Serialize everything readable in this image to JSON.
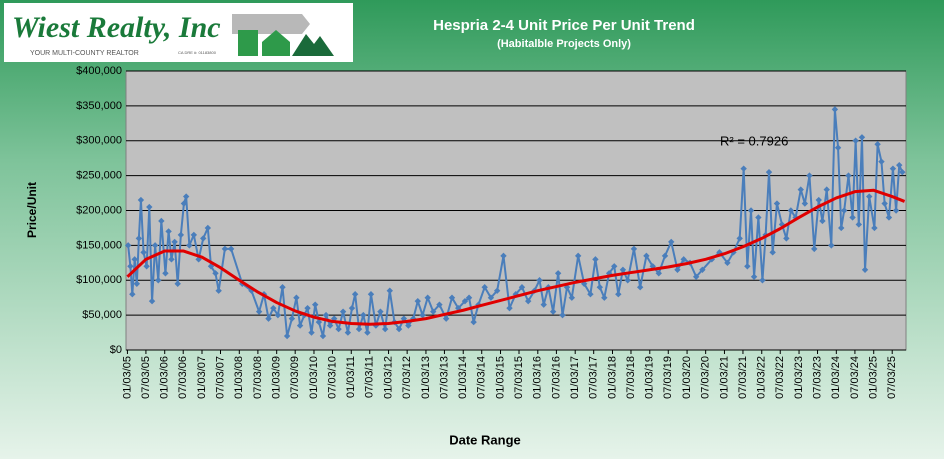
{
  "logo": {
    "name": "Wiest Realty, Inc",
    "tagline": "YOUR MULTI-COUNTY REALTOR",
    "license": "CA DRE #: 01183800"
  },
  "chart_data": {
    "type": "line",
    "title": "Hespria 2-4 Unit Price Per Unit Trend",
    "subtitle": "(Habitalble  Projects Only)",
    "x_label": "Date Range",
    "y_label": "Price/Unit",
    "annotation": "R² = 0.7926",
    "grid": true,
    "xlim": [
      "12/20/04",
      "11/15/25"
    ],
    "xticks": [
      "01/03/05",
      "07/03/05",
      "01/03/06",
      "07/03/06",
      "01/03/07",
      "07/03/07",
      "01/03/08",
      "07/03/08",
      "01/03/09",
      "07/03/09",
      "01/03/10",
      "07/03/10",
      "01/03/11",
      "07/03/11",
      "01/03/12",
      "07/03/12",
      "01/03/13",
      "07/03/13",
      "01/03/14",
      "07/03/14",
      "01/03/15",
      "07/03/15",
      "01/03/16",
      "07/03/16",
      "01/03/17",
      "07/03/17",
      "01/03/18",
      "07/03/18",
      "01/03/19",
      "07/03/19",
      "01/03/20",
      "07/03/20",
      "01/03/21",
      "07/03/21",
      "01/03/22",
      "07/03/22",
      "01/03/23",
      "07/03/23",
      "01/03/24",
      "07/03/24",
      "01/03/25",
      "07/03/25"
    ],
    "ylim": [
      0,
      400000
    ],
    "yticks": [
      {
        "value": 0,
        "label": "$0"
      },
      {
        "value": 50000,
        "label": "$50,000"
      },
      {
        "value": 100000,
        "label": "$100,000"
      },
      {
        "value": 150000,
        "label": "$150,000"
      },
      {
        "value": 200000,
        "label": "$200,000"
      },
      {
        "value": 250000,
        "label": "$250,000"
      },
      {
        "value": 300000,
        "label": "$300,000"
      },
      {
        "value": 350000,
        "label": "$350,000"
      },
      {
        "value": 400000,
        "label": "$400,000"
      }
    ],
    "series": [
      {
        "color": "#4a7ebb",
        "marker": "diamond",
        "x": [
          "01/10/05",
          "02/01/05",
          "02/20/05",
          "03/15/05",
          "04/05/05",
          "04/25/05",
          "05/15/05",
          "06/10/05",
          "07/10/05",
          "08/05/05",
          "09/01/05",
          "10/01/05",
          "11/01/05",
          "12/01/05",
          "01/10/06",
          "02/10/06",
          "03/10/06",
          "04/10/06",
          "05/10/06",
          "06/10/06",
          "07/10/06",
          "08/01/06",
          "09/01/06",
          "10/15/06",
          "12/01/06",
          "01/15/07",
          "03/01/07",
          "04/01/07",
          "05/15/07",
          "06/15/07",
          "08/15/07",
          "10/15/07",
          "02/01/08",
          "05/01/08",
          "07/15/08",
          "09/01/08",
          "10/15/08",
          "12/01/08",
          "01/15/09",
          "03/01/09",
          "04/15/09",
          "06/01/09",
          "07/15/09",
          "08/20/09",
          "10/01/09",
          "11/01/09",
          "12/10/09",
          "01/15/10",
          "02/20/10",
          "04/01/10",
          "05/01/10",
          "06/10/10",
          "07/20/10",
          "09/01/10",
          "10/15/10",
          "12/01/10",
          "01/10/11",
          "02/10/11",
          "03/20/11",
          "05/01/11",
          "06/10/11",
          "07/15/11",
          "09/01/11",
          "10/15/11",
          "12/01/11",
          "01/15/12",
          "03/01/12",
          "04/15/12",
          "06/01/12",
          "07/15/12",
          "09/01/12",
          "10/15/12",
          "12/01/12",
          "01/20/13",
          "03/15/13",
          "05/15/13",
          "07/20/13",
          "09/15/13",
          "11/15/13",
          "01/20/14",
          "03/01/14",
          "04/15/14",
          "06/01/14",
          "08/01/14",
          "10/01/14",
          "12/01/14",
          "02/01/15",
          "04/01/15",
          "06/01/15",
          "08/01/15",
          "10/01/15",
          "12/01/15",
          "01/20/16",
          "03/01/16",
          "04/15/16",
          "06/01/16",
          "07/20/16",
          "09/01/16",
          "10/15/16",
          "12/01/16",
          "02/01/17",
          "04/01/17",
          "06/01/17",
          "07/20/17",
          "09/01/17",
          "10/15/17",
          "12/01/17",
          "01/20/18",
          "03/01/18",
          "04/15/18",
          "06/01/18",
          "08/01/18",
          "10/01/18",
          "12/01/18",
          "02/01/19",
          "04/01/19",
          "06/01/19",
          "08/01/19",
          "10/01/19",
          "12/01/19",
          "02/01/20",
          "04/01/20",
          "06/01/20",
          "09/01/20",
          "11/15/20",
          "02/01/21",
          "04/01/21",
          "06/01/21",
          "07/10/21",
          "08/15/21",
          "09/20/21",
          "10/20/21",
          "12/01/21",
          "01/10/22",
          "02/10/22",
          "03/15/22",
          "04/20/22",
          "06/01/22",
          "07/20/22",
          "09/01/22",
          "10/15/22",
          "12/01/22",
          "01/20/23",
          "03/01/23",
          "04/15/23",
          "06/01/23",
          "07/15/23",
          "08/20/23",
          "10/01/23",
          "11/15/23",
          "12/20/23",
          "01/20/24",
          "02/20/24",
          "03/20/24",
          "05/01/24",
          "06/10/24",
          "07/10/24",
          "08/10/24",
          "09/10/24",
          "10/10/24",
          "11/20/24",
          "01/10/25",
          "02/10/25",
          "03/20/25",
          "04/20/25",
          "06/01/25",
          "07/10/25",
          "08/10/25",
          "09/10/25",
          "10/10/25"
        ],
        "values": [
          150000,
          120000,
          80000,
          130000,
          95000,
          160000,
          215000,
          140000,
          120000,
          205000,
          70000,
          150000,
          100000,
          185000,
          110000,
          170000,
          130000,
          155000,
          95000,
          165000,
          210000,
          220000,
          150000,
          165000,
          130000,
          160000,
          175000,
          120000,
          110000,
          85000,
          145000,
          145000,
          95000,
          85000,
          55000,
          80000,
          45000,
          60000,
          50000,
          90000,
          20000,
          45000,
          75000,
          35000,
          50000,
          60000,
          25000,
          65000,
          40000,
          20000,
          50000,
          35000,
          45000,
          30000,
          55000,
          25000,
          60000,
          80000,
          30000,
          50000,
          25000,
          80000,
          35000,
          55000,
          30000,
          85000,
          40000,
          30000,
          45000,
          35000,
          45000,
          70000,
          50000,
          75000,
          55000,
          65000,
          45000,
          75000,
          60000,
          70000,
          75000,
          40000,
          65000,
          90000,
          75000,
          85000,
          135000,
          60000,
          80000,
          90000,
          70000,
          85000,
          100000,
          65000,
          90000,
          55000,
          110000,
          50000,
          90000,
          75000,
          135000,
          95000,
          80000,
          130000,
          90000,
          75000,
          110000,
          120000,
          80000,
          115000,
          100000,
          145000,
          90000,
          135000,
          120000,
          110000,
          135000,
          155000,
          115000,
          130000,
          125000,
          105000,
          115000,
          130000,
          140000,
          125000,
          140000,
          160000,
          260000,
          120000,
          200000,
          105000,
          190000,
          100000,
          165000,
          255000,
          140000,
          210000,
          180000,
          160000,
          200000,
          190000,
          230000,
          210000,
          250000,
          145000,
          215000,
          185000,
          230000,
          150000,
          345000,
          290000,
          175000,
          200000,
          250000,
          190000,
          300000,
          180000,
          305000,
          115000,
          220000,
          175000,
          295000,
          270000,
          210000,
          190000,
          260000,
          200000,
          265000,
          255000
        ]
      },
      {
        "color": "#e00000",
        "marker": "none",
        "x": [
          "01/03/05",
          "07/03/05",
          "01/03/06",
          "07/03/06",
          "01/03/07",
          "07/03/07",
          "01/03/08",
          "07/03/08",
          "01/03/09",
          "07/03/09",
          "01/03/10",
          "07/03/10",
          "01/03/11",
          "07/03/11",
          "01/03/12",
          "07/03/12",
          "01/03/13",
          "07/03/13",
          "01/03/14",
          "07/03/14",
          "01/03/15",
          "07/03/15",
          "01/03/16",
          "07/03/16",
          "01/03/17",
          "07/03/17",
          "01/03/18",
          "07/03/18",
          "01/03/19",
          "07/03/19",
          "01/03/20",
          "07/03/20",
          "01/03/21",
          "07/03/21",
          "01/03/22",
          "07/03/22",
          "01/03/23",
          "07/03/23",
          "01/03/24",
          "07/03/24",
          "01/03/25",
          "07/03/25",
          "11/01/25"
        ],
        "values": [
          105000,
          130000,
          142000,
          142000,
          133000,
          118000,
          100000,
          83000,
          68000,
          56000,
          47000,
          41000,
          38000,
          37000,
          38000,
          41000,
          45000,
          51000,
          57000,
          64000,
          71000,
          78000,
          85000,
          91000,
          97000,
          102000,
          107000,
          111000,
          115000,
          119000,
          124000,
          130000,
          138000,
          148000,
          160000,
          174000,
          190000,
          205000,
          218000,
          227000,
          229000,
          220000,
          213000
        ]
      }
    ]
  }
}
